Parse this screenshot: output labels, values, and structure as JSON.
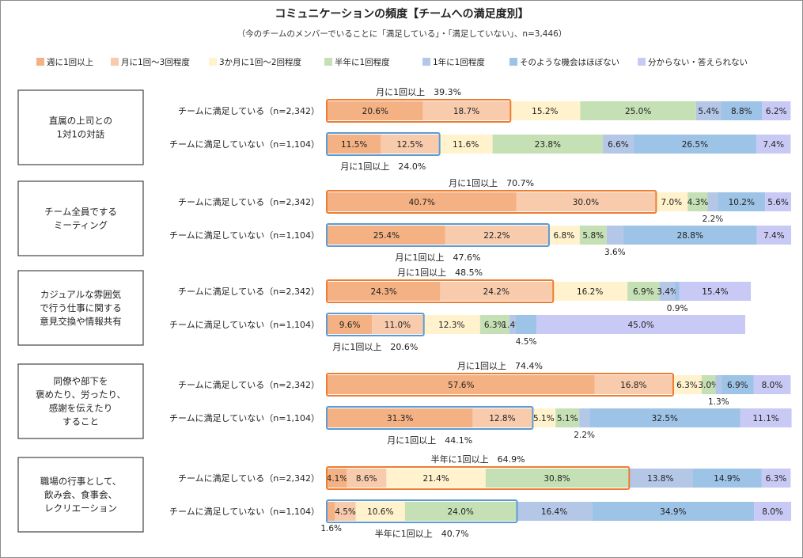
{
  "chart_data": {
    "type": "stacked-bar-horizontal",
    "title": "コミュニケーションの頻度【チームへの満足度別】",
    "subtitle": "（今のチームのメンバーでいることに「満足している」・「満足していない」、n=3,446）",
    "series": [
      {
        "name": "週に1回以上",
        "color": "#f4b183"
      },
      {
        "name": "月に1回～3回程度",
        "color": "#f8cbad"
      },
      {
        "name": "3か月に1回～2回程度",
        "color": "#fff2cc"
      },
      {
        "name": "半年に1回程度",
        "color": "#c5e0b4"
      },
      {
        "name": "1年に1回程度",
        "color": "#b4c7e7"
      },
      {
        "name": "そのような機会はほぼない",
        "color": "#9dc3e6"
      },
      {
        "name": "分からない・答えられない",
        "color": "#c9c9f5"
      }
    ],
    "row_labels": {
      "satisfied": "チームに満足している（n=2,342）",
      "unsatisfied": "チームに満足していない（n=1,104）"
    },
    "groups": [
      {
        "category": [
          "直属の上司との",
          "1対1の対話"
        ],
        "satisfied": [
          20.6,
          18.7,
          15.2,
          25.0,
          5.4,
          8.8,
          6.2
        ],
        "unsatisfied": [
          11.5,
          12.5,
          11.6,
          23.8,
          6.6,
          26.5,
          7.4
        ],
        "sat_callout": "月に1回以上　39.3%",
        "unsat_callout": "月に1回以上　24.0%",
        "sat_box": 2,
        "unsat_box": 2,
        "sat_outside": [],
        "unsat_outside": []
      },
      {
        "category": [
          "チーム全員でする",
          "ミーティング"
        ],
        "satisfied": [
          40.7,
          30.0,
          7.0,
          4.3,
          2.2,
          10.2,
          5.6
        ],
        "unsatisfied": [
          25.4,
          22.2,
          6.8,
          5.8,
          3.6,
          28.8,
          7.4
        ],
        "sat_callout": "月に1回以上　70.7%",
        "unsat_callout": "月に1回以上　47.6%",
        "sat_box": 2,
        "unsat_box": 2,
        "sat_outside": [
          4
        ],
        "unsat_outside": [
          4
        ]
      },
      {
        "category": [
          "カジュアルな雰囲気",
          "で行う仕事に関する",
          "意見交換や情報共有"
        ],
        "satisfied": [
          24.3,
          24.2,
          16.2,
          6.9,
          3.4,
          0.9,
          15.4
        ],
        "unsatisfied": [
          9.6,
          11.0,
          12.3,
          6.3,
          1.4,
          4.5,
          45.0
        ],
        "sat_callout": "月に1回以上　48.5%",
        "unsat_callout": "月に1回以上　20.6%",
        "sat_box": 2,
        "unsat_box": 2,
        "sat_outside": [
          5
        ],
        "unsat_outside": [
          5
        ]
      },
      {
        "category": [
          "同僚や部下を",
          "褒めたり、労ったり、",
          "感謝を伝えたり",
          "すること"
        ],
        "satisfied": [
          57.6,
          16.8,
          6.3,
          3.0,
          1.3,
          6.9,
          8.0
        ],
        "unsatisfied": [
          31.3,
          12.8,
          5.1,
          5.1,
          2.2,
          32.5,
          11.1
        ],
        "sat_callout": "月に1回以上　74.4%",
        "unsat_callout": "月に1回以上　44.1%",
        "sat_box": 2,
        "unsat_box": 2,
        "sat_outside": [
          4
        ],
        "unsat_outside": [
          4
        ]
      },
      {
        "category": [
          "職場の行事として、",
          "飲み会、食事会、",
          "レクリエーション"
        ],
        "satisfied": [
          4.1,
          8.6,
          21.4,
          30.8,
          13.8,
          14.9,
          6.3
        ],
        "unsatisfied": [
          1.6,
          4.5,
          10.6,
          24.0,
          16.4,
          34.9,
          8.0
        ],
        "sat_callout": "半年に1回以上　64.9%",
        "unsat_callout": "半年に1回以上　40.7%",
        "sat_box": 4,
        "unsat_box": 4,
        "sat_outside": [],
        "unsat_outside": [
          0
        ]
      }
    ],
    "highlight_colors": {
      "satisfied": "#ed7d31",
      "unsatisfied": "#5b9bd5"
    },
    "xlim": [
      0,
      100
    ]
  }
}
